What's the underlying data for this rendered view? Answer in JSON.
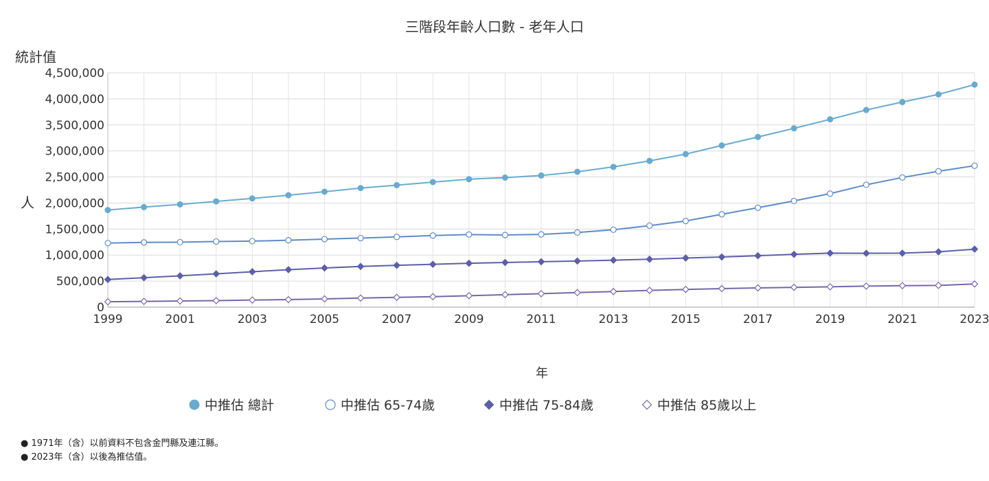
{
  "chart_data": {
    "type": "line",
    "title": "三階段年齡人口數 - 老年人口",
    "y_title": "統計值",
    "ylabel": "人",
    "xlabel": "年",
    "ylim": [
      0,
      4500000
    ],
    "y_ticks": [
      0,
      500000,
      1000000,
      1500000,
      2000000,
      2500000,
      3000000,
      3500000,
      4000000,
      4500000
    ],
    "y_tick_labels": [
      "0",
      "500,000",
      "1,000,000",
      "1,500,000",
      "2,000,000",
      "2,500,000",
      "3,000,000",
      "3,500,000",
      "4,000,000",
      "4,500,000"
    ],
    "x_ticks": [
      1999,
      2001,
      2003,
      2005,
      2007,
      2009,
      2011,
      2013,
      2015,
      2017,
      2019,
      2021,
      2023
    ],
    "xlim": [
      1999,
      2023
    ],
    "grid": true,
    "legend_position": "bottom",
    "x": [
      1999,
      2000,
      2001,
      2002,
      2003,
      2004,
      2005,
      2006,
      2007,
      2008,
      2009,
      2010,
      2011,
      2012,
      2013,
      2014,
      2015,
      2016,
      2017,
      2018,
      2019,
      2020,
      2021,
      2022,
      2023
    ],
    "series": [
      {
        "name": "中推估 總計",
        "color": "#69aacf",
        "marker": "circle-filled",
        "values": [
          1865000,
          1921000,
          1973000,
          2031000,
          2088000,
          2150000,
          2217000,
          2287000,
          2343000,
          2402000,
          2458000,
          2488000,
          2528000,
          2600000,
          2694000,
          2809000,
          2939000,
          3106000,
          3268000,
          3434000,
          3607000,
          3787000,
          3939000,
          4086000,
          4274000
        ]
      },
      {
        "name": "中推估 65-74歲",
        "color": "#5d8cc8",
        "marker": "circle-open",
        "values": [
          1230000,
          1244000,
          1248000,
          1261000,
          1268000,
          1285000,
          1307000,
          1327000,
          1349000,
          1376000,
          1394000,
          1386000,
          1397000,
          1433000,
          1487000,
          1566000,
          1655000,
          1783000,
          1910000,
          2040000,
          2181000,
          2350000,
          2490000,
          2610000,
          2716000
        ]
      },
      {
        "name": "中推估 75-84歲",
        "color": "#5c5fa8",
        "marker": "diamond-filled",
        "values": [
          531000,
          565000,
          602000,
          640000,
          680000,
          720000,
          752000,
          782000,
          803000,
          823000,
          843000,
          858000,
          872000,
          886000,
          902000,
          921000,
          944000,
          963000,
          988000,
          1014000,
          1037000,
          1035000,
          1037000,
          1063000,
          1114000
        ]
      },
      {
        "name": "中推估 85歲以上",
        "color": "#7566a8",
        "marker": "diamond-open",
        "values": [
          104000,
          111000,
          118000,
          126000,
          137000,
          145000,
          159000,
          175000,
          188000,
          202000,
          220000,
          240000,
          259000,
          280000,
          300000,
          322000,
          340000,
          356000,
          370000,
          380000,
          391000,
          404000,
          413000,
          418000,
          445000
        ]
      }
    ]
  },
  "notes": [
    "● 1971年（含）以前資料不包含金門縣及連江縣。",
    "● 2023年（含）以後為推估值。"
  ]
}
